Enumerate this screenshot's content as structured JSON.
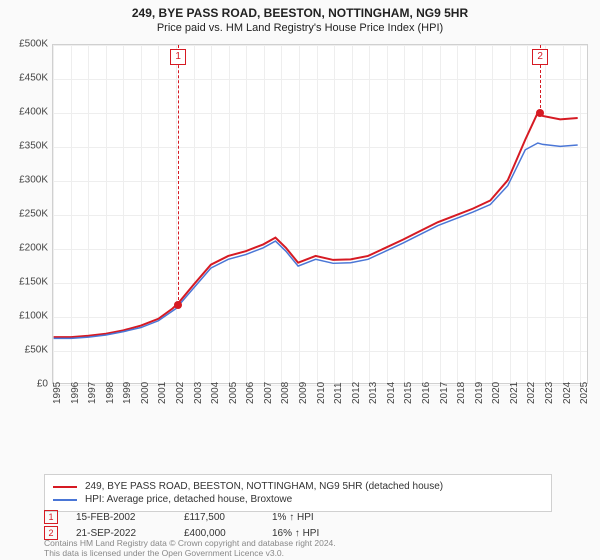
{
  "title_line1": "249, BYE PASS ROAD, BEESTON, NOTTINGHAM, NG9 5HR",
  "title_line2": "Price paid vs. HM Land Registry's House Price Index (HPI)",
  "chart": {
    "type": "line",
    "background_color": "#ffffff",
    "grid_color": "#eeeeee",
    "border_color": "#d0d0d0",
    "xlim": [
      1995,
      2025.5
    ],
    "ylim": [
      0,
      500000
    ],
    "ytick_step": 50000,
    "ytick_labels": [
      "£0",
      "£50K",
      "£100K",
      "£150K",
      "£200K",
      "£250K",
      "£300K",
      "£350K",
      "£400K",
      "£450K",
      "£500K"
    ],
    "xticks": [
      1995,
      1996,
      1997,
      1998,
      1999,
      2000,
      2001,
      2002,
      2003,
      2004,
      2005,
      2006,
      2007,
      2008,
      2009,
      2010,
      2011,
      2012,
      2013,
      2014,
      2015,
      2016,
      2017,
      2018,
      2019,
      2020,
      2021,
      2022,
      2023,
      2024,
      2025
    ],
    "label_fontsize": 10,
    "series": [
      {
        "name": "price_paid",
        "color": "#d61a23",
        "line_width": 2,
        "points": [
          [
            1995,
            68000
          ],
          [
            1996,
            68000
          ],
          [
            1997,
            70000
          ],
          [
            1998,
            73000
          ],
          [
            1999,
            78000
          ],
          [
            2000,
            85000
          ],
          [
            2001,
            95000
          ],
          [
            2001.8,
            110000
          ],
          [
            2002.12,
            117500
          ],
          [
            2003,
            145000
          ],
          [
            2004,
            175000
          ],
          [
            2005,
            188000
          ],
          [
            2006,
            195000
          ],
          [
            2007,
            205000
          ],
          [
            2007.7,
            215000
          ],
          [
            2008.3,
            200000
          ],
          [
            2009,
            178000
          ],
          [
            2010,
            188000
          ],
          [
            2011,
            182000
          ],
          [
            2012,
            183000
          ],
          [
            2013,
            188000
          ],
          [
            2014,
            200000
          ],
          [
            2015,
            212000
          ],
          [
            2016,
            225000
          ],
          [
            2017,
            238000
          ],
          [
            2018,
            248000
          ],
          [
            2019,
            258000
          ],
          [
            2020,
            270000
          ],
          [
            2021,
            300000
          ],
          [
            2022,
            360000
          ],
          [
            2022.72,
            400000
          ],
          [
            2023,
            395000
          ],
          [
            2024,
            390000
          ],
          [
            2025,
            392000
          ]
        ]
      },
      {
        "name": "hpi",
        "color": "#4a76d6",
        "line_width": 1.5,
        "points": [
          [
            1995,
            66000
          ],
          [
            1996,
            66000
          ],
          [
            1997,
            68000
          ],
          [
            1998,
            71000
          ],
          [
            1999,
            76000
          ],
          [
            2000,
            82000
          ],
          [
            2001,
            92000
          ],
          [
            2002,
            110000
          ],
          [
            2003,
            140000
          ],
          [
            2004,
            170000
          ],
          [
            2005,
            183000
          ],
          [
            2006,
            190000
          ],
          [
            2007,
            200000
          ],
          [
            2007.7,
            210000
          ],
          [
            2008.3,
            195000
          ],
          [
            2009,
            173000
          ],
          [
            2010,
            183000
          ],
          [
            2011,
            177000
          ],
          [
            2012,
            178000
          ],
          [
            2013,
            183000
          ],
          [
            2014,
            195000
          ],
          [
            2015,
            207000
          ],
          [
            2016,
            220000
          ],
          [
            2017,
            233000
          ],
          [
            2018,
            243000
          ],
          [
            2019,
            253000
          ],
          [
            2020,
            264000
          ],
          [
            2021,
            292000
          ],
          [
            2022,
            345000
          ],
          [
            2022.72,
            355000
          ],
          [
            2023,
            353000
          ],
          [
            2024,
            350000
          ],
          [
            2025,
            352000
          ]
        ]
      }
    ],
    "sale_markers": [
      {
        "n": "1",
        "x": 2002.12,
        "y": 117500,
        "color": "#d61a23"
      },
      {
        "n": "2",
        "x": 2022.72,
        "y": 400000,
        "color": "#d61a23"
      }
    ]
  },
  "legend": {
    "items": [
      {
        "color": "#d61a23",
        "label": "249, BYE PASS ROAD, BEESTON, NOTTINGHAM, NG9 5HR (detached house)"
      },
      {
        "color": "#4a76d6",
        "label": "HPI: Average price, detached house, Broxtowe"
      }
    ]
  },
  "markers_table": [
    {
      "n": "1",
      "color": "#d61a23",
      "date": "15-FEB-2002",
      "price": "£117,500",
      "delta": "1% ↑ HPI"
    },
    {
      "n": "2",
      "color": "#d61a23",
      "date": "21-SEP-2022",
      "price": "£400,000",
      "delta": "16% ↑ HPI"
    }
  ],
  "footnote_line1": "Contains HM Land Registry data © Crown copyright and database right 2024.",
  "footnote_line2": "This data is licensed under the Open Government Licence v3.0."
}
